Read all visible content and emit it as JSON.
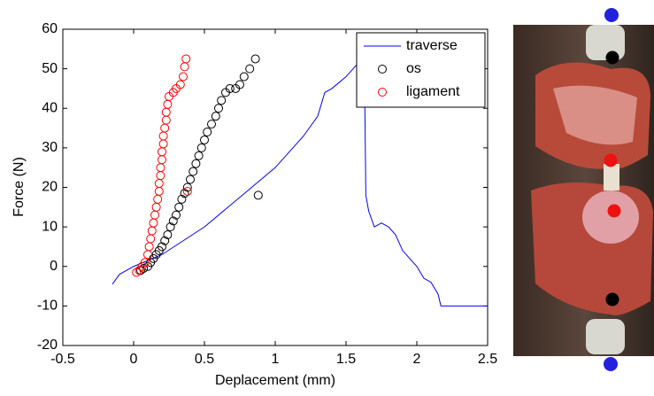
{
  "chart_data": {
    "type": "line",
    "xlabel": "Deplacement (mm)",
    "ylabel": "Force (N)",
    "xlim": [
      -0.5,
      2.5
    ],
    "ylim": [
      -20,
      60
    ],
    "xticks": [
      -0.5,
      0,
      0.5,
      1,
      1.5,
      2,
      2.5
    ],
    "yticks": [
      -20,
      -10,
      0,
      10,
      20,
      30,
      40,
      50,
      60
    ],
    "legend": "northeast",
    "series": [
      {
        "name": "traverse",
        "color": "#0000ff",
        "style": "line",
        "x": [
          -0.15,
          -0.1,
          0,
          0.2,
          0.5,
          0.8,
          1.0,
          1.2,
          1.3,
          1.35,
          1.4,
          1.5,
          1.6,
          1.63,
          1.64,
          1.66,
          1.7,
          1.75,
          1.8,
          1.85,
          1.9,
          2.0,
          2.05,
          2.1,
          2.15,
          2.17,
          2.2,
          2.5
        ],
        "values": [
          -4.5,
          -2,
          0,
          3,
          10,
          19,
          25,
          33,
          38,
          44,
          45,
          48,
          52,
          50,
          18,
          14,
          10,
          11,
          10,
          8,
          4,
          0,
          -3,
          -4,
          -7,
          -10,
          -10,
          -10
        ]
      },
      {
        "name": "os",
        "color": "#000000",
        "style": "markers",
        "x": [
          0.05,
          0.07,
          0.1,
          0.12,
          0.14,
          0.16,
          0.18,
          0.2,
          0.22,
          0.24,
          0.26,
          0.28,
          0.3,
          0.32,
          0.34,
          0.36,
          0.38,
          0.4,
          0.42,
          0.44,
          0.46,
          0.48,
          0.5,
          0.52,
          0.55,
          0.58,
          0.6,
          0.62,
          0.65,
          0.68,
          0.72,
          0.75,
          0.78,
          0.82,
          0.86,
          0.88
        ],
        "values": [
          -1,
          -0.5,
          0,
          1,
          2,
          3,
          4,
          5,
          6.5,
          8,
          10,
          11.5,
          13,
          15,
          17,
          18.5,
          20,
          22,
          24,
          26,
          28,
          30,
          32,
          34,
          36,
          38,
          40,
          42,
          44,
          45,
          45,
          46,
          48,
          50,
          52.5,
          18
        ]
      },
      {
        "name": "ligament",
        "color": "#ff0000",
        "style": "markers",
        "x": [
          0.02,
          0.04,
          0.06,
          0.08,
          0.1,
          0.11,
          0.12,
          0.13,
          0.14,
          0.15,
          0.16,
          0.17,
          0.18,
          0.18,
          0.19,
          0.19,
          0.2,
          0.2,
          0.21,
          0.21,
          0.22,
          0.23,
          0.23,
          0.24,
          0.25,
          0.28,
          0.3,
          0.33,
          0.35,
          0.36,
          0.37,
          0.38
        ],
        "values": [
          -1.5,
          -1,
          0,
          1,
          3,
          5,
          7,
          9,
          11,
          13,
          15,
          17,
          19,
          21,
          23,
          25,
          27,
          29,
          31,
          33,
          35,
          37,
          39,
          41,
          43,
          44,
          45,
          46,
          48,
          50.5,
          52.5,
          19
        ]
      }
    ]
  }
}
